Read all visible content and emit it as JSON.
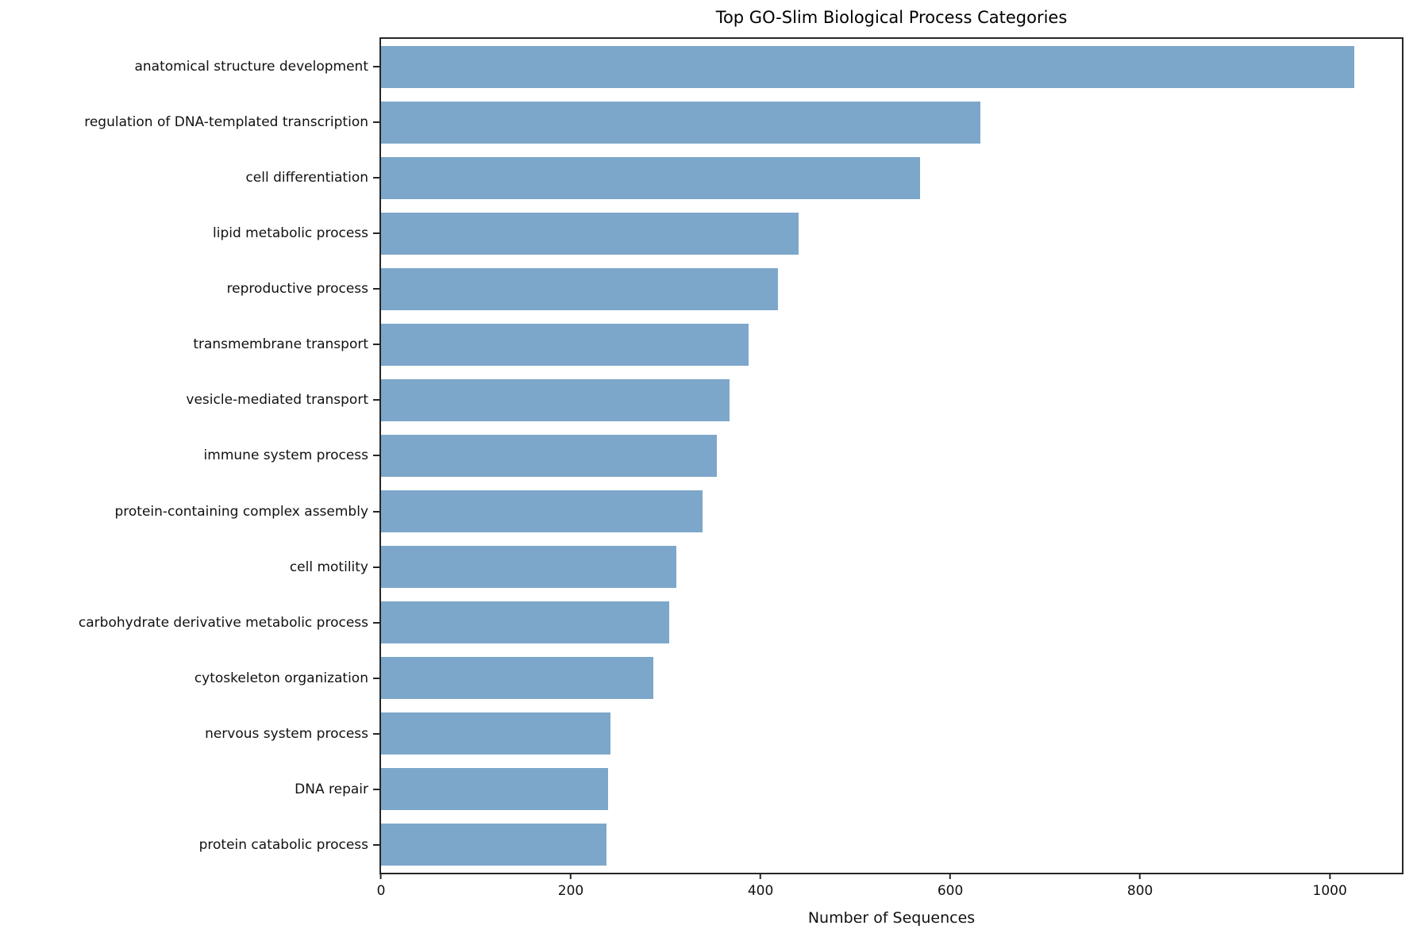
{
  "chart_data": {
    "type": "bar",
    "orientation": "horizontal",
    "title": "Top GO-Slim Biological Process Categories",
    "xlabel": "Number of Sequences",
    "ylabel": "",
    "categories": [
      "anatomical structure development",
      "regulation of DNA-templated transcription",
      "cell differentiation",
      "lipid metabolic process",
      "reproductive process",
      "transmembrane transport",
      "vesicle-mediated transport",
      "immune system process",
      "protein-containing complex assembly",
      "cell motility",
      "carbohydrate derivative metabolic process",
      "cytoskeleton organization",
      "nervous system process",
      "DNA repair",
      "protein catabolic process"
    ],
    "values": [
      1026,
      632,
      568,
      440,
      418,
      387,
      367,
      354,
      339,
      311,
      304,
      287,
      242,
      239,
      238
    ],
    "xlim": [
      0,
      1076
    ],
    "xticks": [
      0,
      200,
      400,
      600,
      800,
      1000
    ],
    "bar_color": "#7da7ca",
    "axis_color": "#262626",
    "grid": false,
    "legend_position": "none"
  }
}
